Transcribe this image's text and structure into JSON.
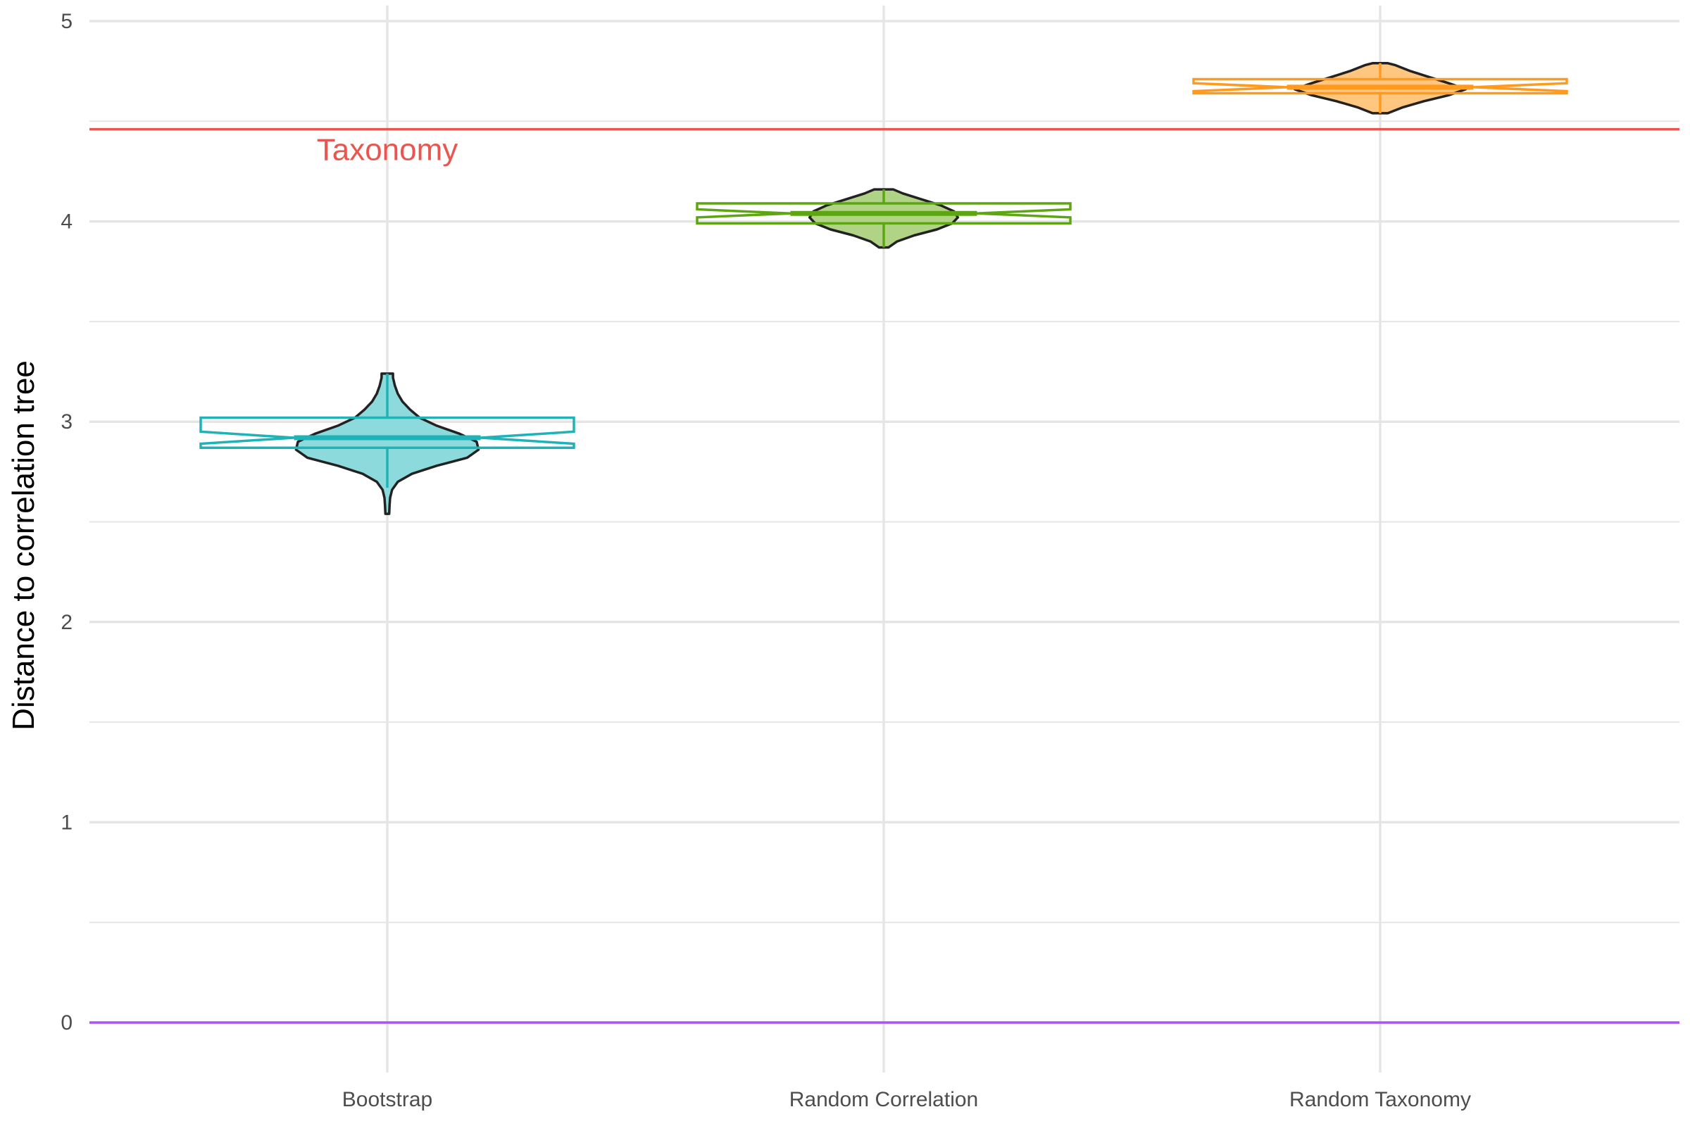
{
  "chart_data": {
    "type": "violin",
    "title": "",
    "xlabel": "",
    "ylabel": "Distance to correlation tree",
    "ylim": [
      -0.25,
      5.05
    ],
    "yticks": [
      0,
      1,
      2,
      3,
      4,
      5
    ],
    "ytick_labels": [
      "0",
      "1",
      "2",
      "3",
      "4",
      "5"
    ],
    "categories": [
      "Bootstrap",
      "Random Correlation",
      "Random Taxonomy"
    ],
    "grid": true,
    "legend": "none",
    "reference_lines": [
      {
        "label": "Taxonomy",
        "y": 4.46,
        "color": "#e8564f",
        "label_category": "Bootstrap"
      },
      {
        "label": "",
        "y": 0,
        "color": "#a855f7"
      }
    ],
    "series": [
      {
        "category": "Bootstrap",
        "color": "#1fb3b8",
        "fill": "#8cdadc",
        "violin": {
          "y": [
            2.54,
            2.58,
            2.62,
            2.66,
            2.7,
            2.74,
            2.78,
            2.82,
            2.86,
            2.9,
            2.94,
            2.98,
            3.02,
            3.06,
            3.1,
            3.14,
            3.18,
            3.22,
            3.24
          ],
          "halfwidth": [
            0.01,
            0.012,
            0.015,
            0.025,
            0.055,
            0.13,
            0.26,
            0.42,
            0.48,
            0.47,
            0.38,
            0.26,
            0.17,
            0.12,
            0.08,
            0.055,
            0.04,
            0.03,
            0.03
          ]
        },
        "box": {
          "q1": 2.87,
          "median": 2.92,
          "q3": 3.02,
          "notch_low": 2.89,
          "notch_high": 2.95,
          "whisker_low": 2.67,
          "whisker_high": 3.24
        }
      },
      {
        "category": "Random Correlation",
        "color": "#5ea611",
        "fill": "#b0d386",
        "violin": {
          "y": [
            3.87,
            3.9,
            3.93,
            3.96,
            3.99,
            4.02,
            4.05,
            4.08,
            4.11,
            4.14,
            4.16
          ],
          "halfwidth": [
            0.025,
            0.07,
            0.16,
            0.28,
            0.36,
            0.39,
            0.37,
            0.3,
            0.2,
            0.1,
            0.05
          ]
        },
        "box": {
          "q1": 3.99,
          "median": 4.04,
          "q3": 4.09,
          "notch_low": 4.02,
          "notch_high": 4.06,
          "whisker_low": 3.87,
          "whisker_high": 4.16
        }
      },
      {
        "category": "Random Taxonomy",
        "color": "#ff9a1f",
        "fill": "#ffc680",
        "violin": {
          "y": [
            4.54,
            4.57,
            4.6,
            4.63,
            4.66,
            4.69,
            4.72,
            4.75,
            4.78,
            4.79
          ],
          "halfwidth": [
            0.04,
            0.12,
            0.23,
            0.36,
            0.45,
            0.36,
            0.26,
            0.16,
            0.08,
            0.04
          ]
        },
        "box": {
          "q1": 4.64,
          "median": 4.67,
          "q3": 4.71,
          "notch_low": 4.65,
          "notch_high": 4.69,
          "whisker_low": 4.54,
          "whisker_high": 4.79
        }
      }
    ]
  }
}
